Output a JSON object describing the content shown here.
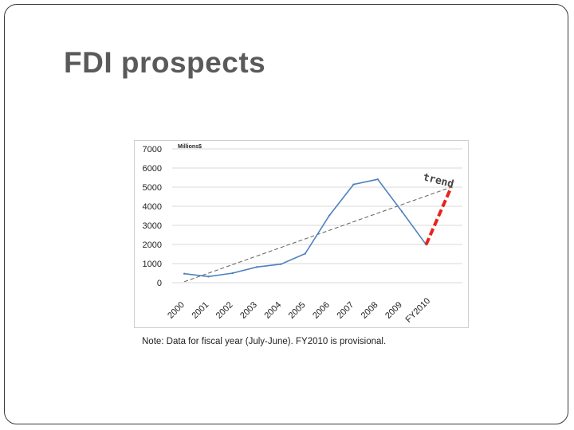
{
  "slide": {
    "title": "FDI prospects",
    "note": "Note: Data for fiscal year (July-June). FY2010 is provisional."
  },
  "colors": {
    "title": "#5a5a5a",
    "line": "#4f81bd",
    "trendline": "#606060",
    "trend_extension": "#e8231b",
    "grid": "#d9d9d9"
  },
  "chart_data": {
    "type": "line",
    "unit_label": "Millions$",
    "categories": [
      "2000",
      "2001",
      "2002",
      "2003",
      "2004",
      "2005",
      "2006",
      "2007",
      "2008",
      "2009",
      "FY2010"
    ],
    "y_ticks": [
      "0",
      "1000",
      "2000",
      "3000",
      "4000",
      "5000",
      "6000",
      "7000"
    ],
    "ylim": [
      0,
      7000
    ],
    "grid": true,
    "series": [
      {
        "values": [
          470,
          320,
          500,
          820,
          970,
          1520,
          3520,
          5140,
          5410,
          3720,
          1990
        ]
      }
    ],
    "trendline": {
      "style": "dashed",
      "start": 50,
      "end": 5000
    },
    "annotation": {
      "text": "trend",
      "from_value": 1990,
      "to_value": 5000,
      "style": "red-dashed"
    }
  }
}
